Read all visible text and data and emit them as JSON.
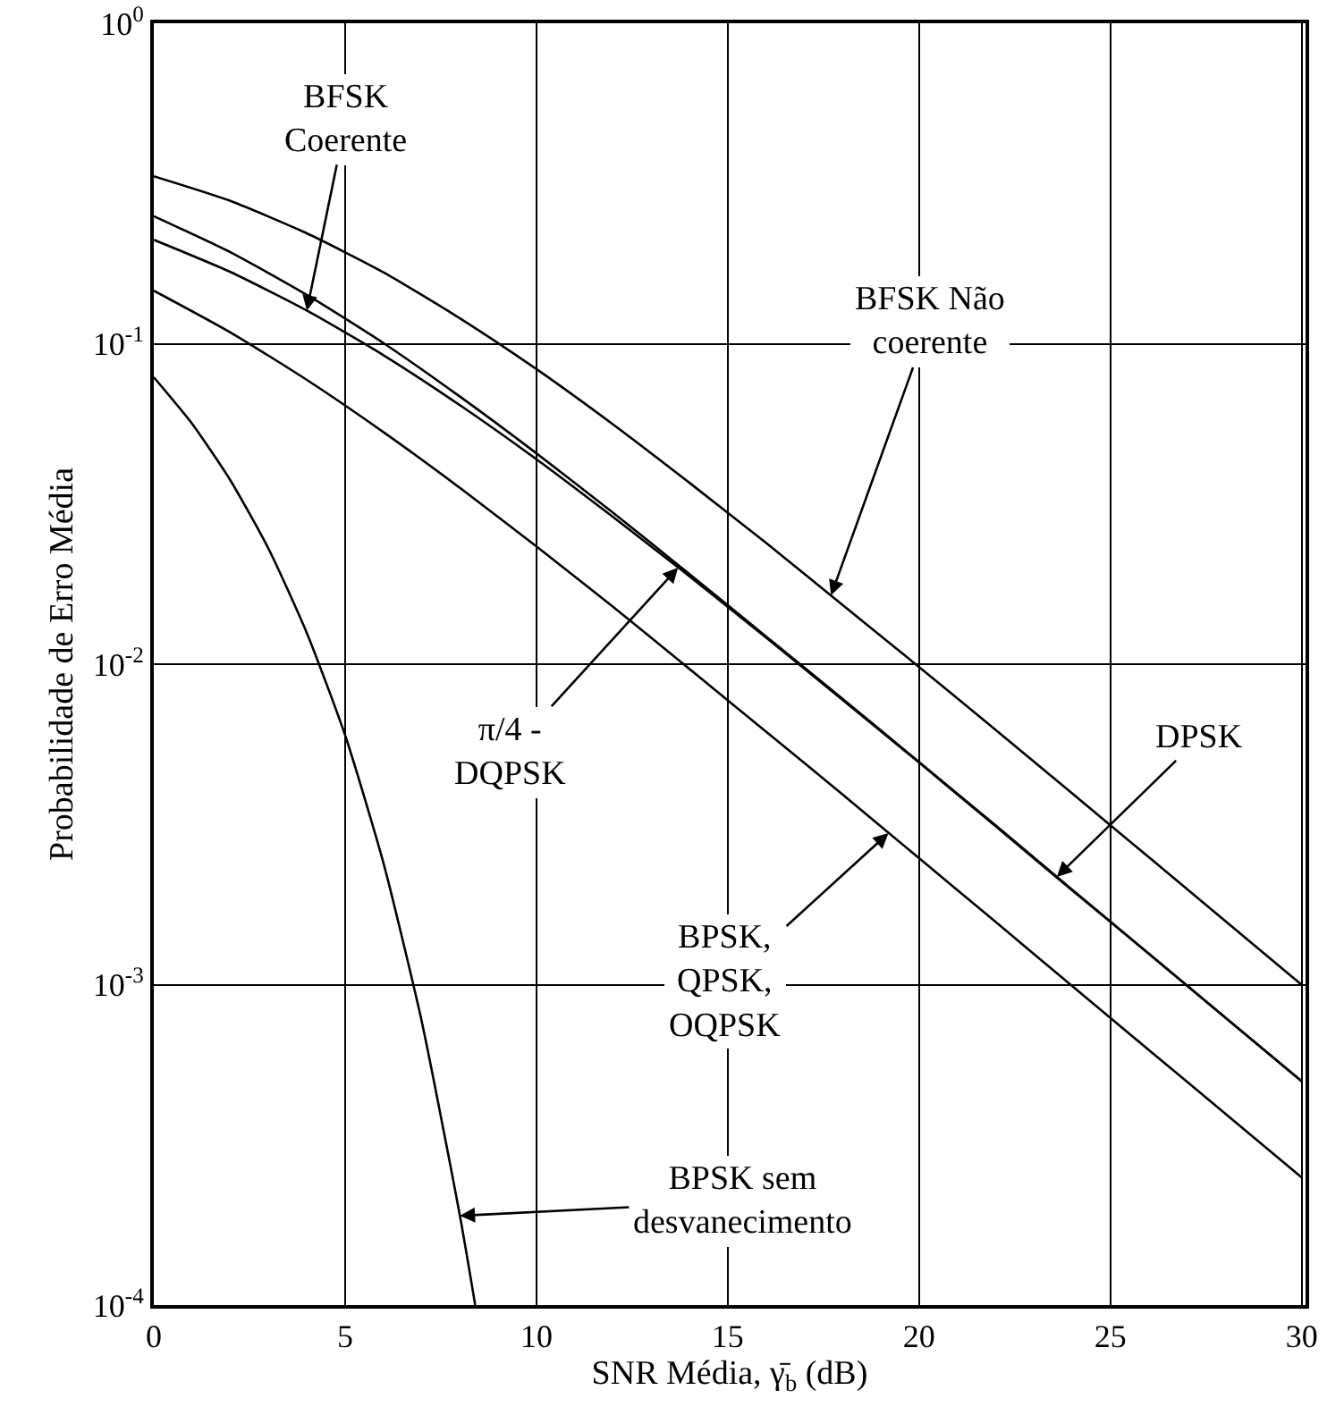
{
  "chart_data": {
    "type": "line",
    "xlabel": "SNR Média, γ̄$_{b}$ (dB)",
    "ylabel": "Probabilidade de Erro Média",
    "log": "y",
    "grid": true,
    "marker": "none",
    "line_style": "solid",
    "xlim": [
      0,
      30.1
    ],
    "xticks": [
      0,
      5,
      10,
      15,
      20,
      25,
      30
    ],
    "ylim": [
      0.0001,
      1
    ],
    "yticks": [
      {
        "value": 1,
        "label": "10$^{0}$"
      },
      {
        "value": 0.1,
        "label": "10$^{-1}$"
      },
      {
        "value": 0.01,
        "label": "10$^{-2}$"
      },
      {
        "value": 0.001,
        "label": "10$^{-3}$"
      },
      {
        "value": 0.0001,
        "label": "10$^{-4}$"
      }
    ],
    "series": [
      {
        "color": "#000000",
        "x": [
          0,
          2,
          4,
          6,
          8,
          10,
          12,
          14,
          16,
          18,
          20,
          22,
          24,
          26,
          28,
          30
        ],
        "values": [
          0.333,
          0.279,
          0.221,
          0.167,
          0.12,
          0.0833,
          0.056,
          0.0368,
          0.0239,
          0.0153,
          0.0098,
          0.00624,
          0.00395,
          0.0025,
          0.00158,
          0.000998
        ]
      },
      {
        "color": "#000000",
        "x": [
          0,
          2,
          4,
          6,
          8,
          10,
          12,
          14,
          16,
          18,
          20,
          22,
          24,
          26,
          28,
          30
        ],
        "values": [
          0.25,
          0.193,
          0.142,
          0.1005,
          0.0684,
          0.0455,
          0.0297,
          0.0191,
          0.0122,
          0.0078,
          0.00495,
          0.00314,
          0.00198,
          0.00125,
          0.00079,
          0.0005
        ]
      },
      {
        "color": "#000000",
        "x": [
          0,
          2,
          4,
          6,
          8,
          10,
          12,
          14,
          16,
          18,
          20,
          22,
          24,
          26,
          28,
          30
        ],
        "values": [
          0.211,
          0.1675,
          0.1269,
          0.0921,
          0.0643,
          0.0436,
          0.0288,
          0.0188,
          0.0121,
          0.00774,
          0.00493,
          0.00312,
          0.00197,
          0.00125,
          0.00079,
          0.000499
        ]
      },
      {
        "color": "#000000",
        "x": [
          0,
          2,
          4,
          6,
          8,
          10,
          12,
          14,
          16,
          18,
          20,
          22,
          24,
          26,
          28,
          30
        ],
        "values": [
          0.1464,
          0.1085,
          0.0771,
          0.053,
          0.0355,
          0.0233,
          0.0151,
          0.00966,
          0.00616,
          0.00392,
          0.00248,
          0.00157,
          0.00099,
          0.000626,
          0.000396,
          0.00025
        ]
      },
      {
        "color": "#000000",
        "x": [
          0,
          1,
          2,
          3,
          4,
          5,
          6,
          7,
          8,
          8.4
        ],
        "values": [
          0.0786,
          0.0563,
          0.0375,
          0.0229,
          0.0125,
          0.006,
          0.0024,
          0.00077,
          0.00019,
          0.0001
        ]
      }
    ],
    "annotations": [
      {
        "text": "BFSK\nCoerente",
        "x": 4,
        "y": 0.127
      },
      {
        "text": "BFSK Não\ncoerente",
        "x": 17.7,
        "y": 0.0164
      },
      {
        "text": "DPSK",
        "x": 23.6,
        "y": 0.00217
      },
      {
        "text": "BPSK,\nQPSK,\nOQPSK",
        "x": 19.2,
        "y": 0.00297
      },
      {
        "text": "π/4 -\nDQPSK",
        "x": 13.7,
        "y": 0.02
      },
      {
        "text": "BPSK sem\ndesvanecimento",
        "x": 8,
        "y": 0.00019
      }
    ]
  }
}
